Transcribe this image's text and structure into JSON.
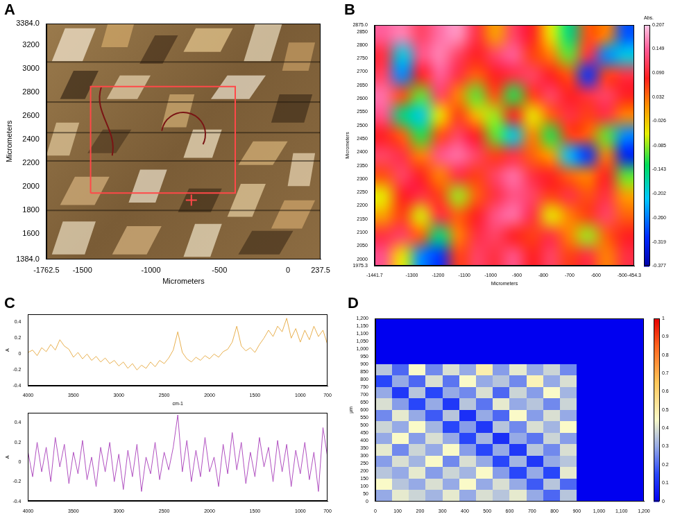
{
  "chart_data": [
    {
      "panel": "A",
      "type": "image",
      "x_label": "Micrometers",
      "y_label": "Micrometers",
      "xlim": [
        -1762.5,
        237.5
      ],
      "ylim": [
        1384,
        3384
      ],
      "xticks": [
        -1762.5,
        -1500,
        -1000,
        -500,
        0,
        237.5
      ],
      "yticks": [
        {
          "value": 1384,
          "label": "1384.0"
        },
        1600,
        1800,
        2000,
        2200,
        2400,
        2600,
        2800,
        3000,
        3200,
        {
          "value": 3384,
          "label": "3384.0"
        }
      ],
      "grid": false,
      "region": {
        "x": [
          -1440,
          -385
        ],
        "y": [
          1945,
          2850
        ]
      },
      "crosshair": [
        -705,
        1885
      ],
      "color": "#ff4848"
    },
    {
      "panel": "B",
      "type": "heatmap",
      "x_label": "Micrometers",
      "y_label": "Micrometers",
      "xlim": [
        -1441.7,
        -454.3
      ],
      "ylim": [
        1975.3,
        2875
      ],
      "xticks": [
        -1441.7,
        -1300,
        -1200,
        -1100,
        -1000,
        -900,
        -800,
        -700,
        -600,
        -500,
        -454.3
      ],
      "yticks": [
        1975.3,
        2000,
        2050,
        2100,
        2150,
        2200,
        2250,
        2300,
        2350,
        2400,
        2450,
        2500,
        2550,
        2600,
        2650,
        2700,
        2750,
        2800,
        2850,
        {
          "value": 2875,
          "label": "2875.0"
        }
      ],
      "grid": false,
      "cells_xlim": [
        -1441.7,
        -454.3
      ],
      "cells_ylim": [
        1975.3,
        2875
      ],
      "cells": [
        [
          0.15,
          0.17,
          0.12,
          0.16,
          0.18,
          0.1,
          0.0,
          0.12,
          0.08,
          -0.05,
          -0.15,
          0.05,
          0.02,
          -0.28
        ],
        [
          0.1,
          -0.2,
          0.14,
          0.17,
          0.12,
          0.08,
          0.12,
          0.15,
          0.06,
          0.02,
          -0.1,
          0.1,
          -0.25,
          -0.2
        ],
        [
          0.12,
          -0.25,
          0.08,
          0.15,
          0.1,
          0.04,
          0.08,
          0.1,
          0.12,
          0.08,
          0.05,
          -0.3,
          0.06,
          0.1
        ],
        [
          0.16,
          0.05,
          -0.1,
          0.12,
          0.02,
          -0.1,
          0.05,
          -0.12,
          0.06,
          0.12,
          0.08,
          0.1,
          0.12,
          0.08
        ],
        [
          0.14,
          -0.15,
          -0.2,
          -0.05,
          0.06,
          -0.02,
          -0.08,
          0.08,
          -0.05,
          0.04,
          0.1,
          0.06,
          0.1,
          0.02
        ],
        [
          0.08,
          0.04,
          -0.12,
          0.05,
          0.12,
          0.08,
          -0.1,
          -0.2,
          0.02,
          -0.12,
          0.06,
          0.04,
          -0.1,
          -0.25
        ],
        [
          0.12,
          0.1,
          0.02,
          0.14,
          0.16,
          0.12,
          0.06,
          0.1,
          0.04,
          0.0,
          -0.22,
          -0.3,
          0.02,
          -0.32
        ],
        [
          0.05,
          0.12,
          0.08,
          0.02,
          0.1,
          0.06,
          0.12,
          0.16,
          0.1,
          0.08,
          0.04,
          0.02,
          0.08,
          -0.1
        ],
        [
          -0.05,
          0.08,
          0.1,
          0.06,
          -0.08,
          0.04,
          0.1,
          0.14,
          0.12,
          0.06,
          0.1,
          0.05,
          0.1,
          0.0
        ],
        [
          0.0,
          0.06,
          -0.06,
          0.1,
          0.04,
          0.08,
          0.14,
          0.16,
          0.1,
          -0.05,
          0.02,
          0.06,
          0.12,
          0.04
        ],
        [
          0.1,
          0.12,
          0.04,
          -0.15,
          0.02,
          0.1,
          0.12,
          0.08,
          0.06,
          0.1,
          0.02,
          -0.08,
          0.04,
          0.08
        ],
        [
          0.14,
          -0.05,
          -0.25,
          -0.3,
          0.06,
          0.12,
          0.1,
          0.14,
          0.08,
          0.12,
          0.06,
          0.1,
          0.02,
          0.1
        ]
      ],
      "colorbar": {
        "label": "Abs.",
        "range": [
          -0.377,
          0.207
        ],
        "ticks": [
          0.207,
          0.149,
          {
            "value": 0.09,
            "label": "0.090"
          },
          0.032,
          -0.026,
          -0.085,
          -0.143,
          -0.202,
          {
            "value": -0.26,
            "label": "-0.260"
          },
          -0.319,
          -0.377
        ]
      }
    },
    {
      "panel": "C",
      "type": "line",
      "x_label": "cm-1",
      "y_label": "A",
      "xlim": [
        4000,
        700
      ],
      "ylim": [
        -0.4,
        0.5
      ],
      "xticks": [
        4000,
        3500,
        3000,
        2500,
        2000,
        1500,
        1000,
        700
      ],
      "yticks": [
        -0.4,
        -0.2,
        0,
        0.2,
        0.4
      ],
      "grid": false,
      "color": "#e8b050",
      "x": [
        4000,
        3950,
        3900,
        3850,
        3800,
        3750,
        3700,
        3650,
        3600,
        3550,
        3500,
        3450,
        3400,
        3350,
        3300,
        3250,
        3200,
        3150,
        3100,
        3050,
        3000,
        2950,
        2900,
        2850,
        2800,
        2750,
        2700,
        2650,
        2600,
        2550,
        2500,
        2450,
        2400,
        2350,
        2300,
        2250,
        2200,
        2150,
        2100,
        2050,
        2000,
        1950,
        1900,
        1850,
        1800,
        1750,
        1700,
        1650,
        1600,
        1550,
        1500,
        1450,
        1400,
        1350,
        1300,
        1250,
        1200,
        1150,
        1100,
        1050,
        1000,
        950,
        900,
        850,
        800,
        750,
        700
      ],
      "values": [
        0.02,
        0.05,
        -0.02,
        0.08,
        0.03,
        0.12,
        0.05,
        0.18,
        0.1,
        0.06,
        -0.04,
        0.02,
        -0.06,
        0.0,
        -0.08,
        -0.03,
        -0.1,
        -0.05,
        -0.12,
        -0.08,
        -0.15,
        -0.1,
        -0.18,
        -0.12,
        -0.2,
        -0.14,
        -0.18,
        -0.1,
        -0.16,
        -0.08,
        -0.12,
        -0.05,
        0.05,
        0.28,
        0.02,
        -0.06,
        -0.1,
        -0.04,
        -0.08,
        -0.02,
        -0.06,
        0.0,
        -0.04,
        0.03,
        0.06,
        0.15,
        0.35,
        0.1,
        0.04,
        0.08,
        0.02,
        0.12,
        0.2,
        0.3,
        0.22,
        0.35,
        0.28,
        0.45,
        0.2,
        0.32,
        0.15,
        0.3,
        0.18,
        0.35,
        0.22,
        0.3,
        0.12
      ]
    },
    {
      "type": "line",
      "y_label": "A",
      "xlim": [
        4000,
        700
      ],
      "ylim": [
        -0.4,
        0.5
      ],
      "xticks": [
        4000,
        3500,
        3000,
        2500,
        2000,
        1500,
        1000,
        700
      ],
      "yticks": [
        -0.4,
        -0.2,
        0,
        0.2,
        0.4
      ],
      "grid": false,
      "color": "#b050c0",
      "x": [
        4000,
        3950,
        3900,
        3850,
        3800,
        3750,
        3700,
        3650,
        3600,
        3550,
        3500,
        3450,
        3400,
        3350,
        3300,
        3250,
        3200,
        3150,
        3100,
        3050,
        3000,
        2950,
        2900,
        2850,
        2800,
        2750,
        2700,
        2650,
        2600,
        2550,
        2500,
        2450,
        2400,
        2350,
        2300,
        2250,
        2200,
        2150,
        2100,
        2050,
        2000,
        1950,
        1900,
        1850,
        1800,
        1750,
        1700,
        1650,
        1600,
        1550,
        1500,
        1450,
        1400,
        1350,
        1300,
        1250,
        1200,
        1150,
        1100,
        1050,
        1000,
        950,
        900,
        850,
        800,
        750,
        700
      ],
      "values": [
        0.1,
        -0.15,
        0.2,
        -0.1,
        0.15,
        -0.2,
        0.25,
        -0.05,
        0.18,
        -0.22,
        0.1,
        -0.12,
        0.22,
        -0.18,
        0.05,
        -0.25,
        0.15,
        -0.1,
        0.2,
        -0.2,
        0.08,
        -0.28,
        0.12,
        -0.15,
        0.18,
        -0.3,
        0.05,
        -0.12,
        0.2,
        -0.18,
        0.1,
        -0.08,
        0.15,
        0.48,
        -0.1,
        0.22,
        -0.2,
        0.12,
        -0.15,
        0.25,
        -0.1,
        0.05,
        -0.25,
        0.18,
        -0.12,
        0.3,
        -0.08,
        0.2,
        -0.22,
        0.1,
        -0.15,
        0.25,
        -0.05,
        0.15,
        -0.2,
        0.22,
        -0.1,
        0.18,
        -0.25,
        0.12,
        -0.12,
        0.2,
        -0.18,
        0.1,
        -0.3,
        0.35,
        0.05
      ]
    },
    {
      "panel": "D",
      "type": "heatmap",
      "y_label": "µm",
      "xlim": [
        0,
        1200
      ],
      "ylim": [
        0,
        1200
      ],
      "xticks": [
        0,
        100,
        200,
        300,
        400,
        500,
        600,
        700,
        800,
        900,
        {
          "value": 1000,
          "label": "1,000"
        },
        {
          "value": 1100,
          "label": "1,100"
        },
        {
          "value": 1200,
          "label": "1,200"
        }
      ],
      "yticks": [
        0,
        50,
        100,
        150,
        200,
        250,
        300,
        350,
        400,
        450,
        500,
        550,
        600,
        650,
        700,
        750,
        800,
        850,
        900,
        950,
        {
          "value": 1000,
          "label": "1,000"
        },
        {
          "value": 1050,
          "label": "1,050"
        },
        {
          "value": 1100,
          "label": "1,100"
        },
        {
          "value": 1150,
          "label": "1,150"
        },
        {
          "value": 1200,
          "label": "1,200"
        }
      ],
      "grid": false,
      "cells_xlim": [
        0,
        900
      ],
      "cells_ylim": [
        0,
        900
      ],
      "cells": [
        [
          0.35,
          0.2,
          0.45,
          0.25,
          0.4,
          0.3,
          0.5,
          0.28,
          0.42,
          0.3,
          0.38,
          0.25
        ],
        [
          0.15,
          0.3,
          0.2,
          0.4,
          0.22,
          0.45,
          0.3,
          0.35,
          0.25,
          0.48,
          0.3,
          0.4
        ],
        [
          0.3,
          0.12,
          0.35,
          0.15,
          0.3,
          0.25,
          0.4,
          0.2,
          0.38,
          0.28,
          0.45,
          0.32
        ],
        [
          0.4,
          0.28,
          0.15,
          0.3,
          0.12,
          0.35,
          0.22,
          0.42,
          0.3,
          0.35,
          0.25,
          0.38
        ],
        [
          0.25,
          0.42,
          0.3,
          0.18,
          0.35,
          0.1,
          0.3,
          0.2,
          0.45,
          0.28,
          0.4,
          0.3
        ],
        [
          0.38,
          0.3,
          0.45,
          0.32,
          0.15,
          0.28,
          0.12,
          0.35,
          0.25,
          0.4,
          0.32,
          0.45
        ],
        [
          0.3,
          0.45,
          0.28,
          0.4,
          0.3,
          0.15,
          0.32,
          0.1,
          0.3,
          0.22,
          0.38,
          0.28
        ],
        [
          0.42,
          0.25,
          0.38,
          0.3,
          0.45,
          0.28,
          0.15,
          0.3,
          0.12,
          0.35,
          0.25,
          0.4
        ],
        [
          0.28,
          0.4,
          0.32,
          0.45,
          0.25,
          0.4,
          0.3,
          0.15,
          0.32,
          0.12,
          0.3,
          0.35
        ],
        [
          0.35,
          0.3,
          0.42,
          0.28,
          0.38,
          0.32,
          0.45,
          0.28,
          0.15,
          0.3,
          0.15,
          0.42
        ],
        [
          0.45,
          0.35,
          0.3,
          0.4,
          0.3,
          0.45,
          0.3,
          0.4,
          0.3,
          0.18,
          0.35,
          0.2
        ],
        [
          0.3,
          0.42,
          0.38,
          0.32,
          0.42,
          0.3,
          0.4,
          0.35,
          0.42,
          0.3,
          0.2,
          0.35
        ]
      ],
      "colorbar": {
        "range": [
          0,
          1
        ],
        "ticks": [
          0,
          0.1,
          0.2,
          0.3,
          0.4,
          0.5,
          0.6,
          0.7,
          0.8,
          0.9,
          1
        ]
      }
    }
  ]
}
